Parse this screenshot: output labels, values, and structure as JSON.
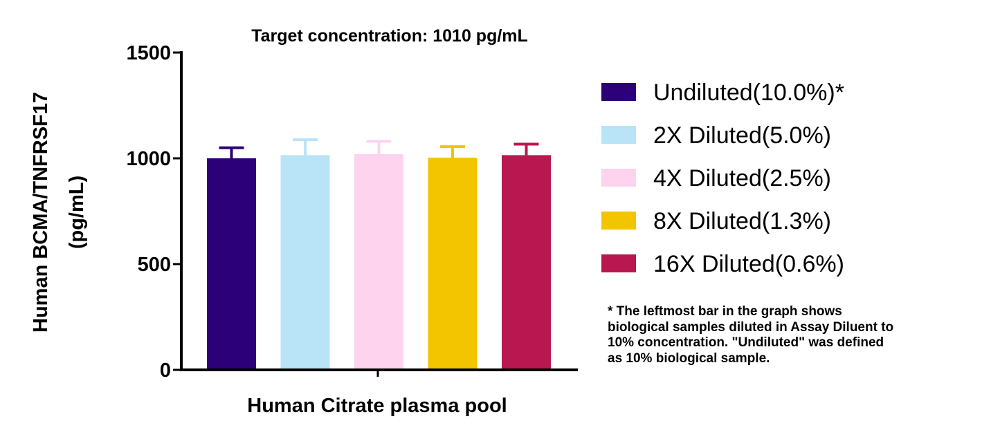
{
  "chart_data": {
    "type": "bar",
    "title": "Target concentration: 1010 pg/mL",
    "xlabel": "Human Citrate plasma pool",
    "ylabel": [
      "Human BCMA/TNFRSF17",
      "(pg/mL)"
    ],
    "ylim": [
      0,
      1500
    ],
    "yticks": [
      "0",
      "500",
      "1000",
      "1500"
    ],
    "grid": false,
    "legend_position": "right",
    "series": [
      {
        "name": "Undiluted(10.0%)*",
        "value": 1000,
        "error": 50,
        "color": "#2c0078"
      },
      {
        "name": "2X Diluted(5.0%)",
        "value": 1015,
        "error": 73,
        "color": "#b9e4f8"
      },
      {
        "name": "4X Diluted(2.5%)",
        "value": 1020,
        "error": 60,
        "color": "#fdd3ee"
      },
      {
        "name": "8X Diluted(1.3%)",
        "value": 1003,
        "error": 52,
        "color": "#f2c500"
      },
      {
        "name": "16X Diluted(0.6%)",
        "value": 1015,
        "error": 52,
        "color": "#b8174f"
      }
    ]
  },
  "footnote": [
    "* The leftmost bar in the graph shows",
    "biological samples diluted in Assay Diluent to",
    "10% concentration. \"Undiluted\" was defined",
    "as 10% biological sample."
  ]
}
